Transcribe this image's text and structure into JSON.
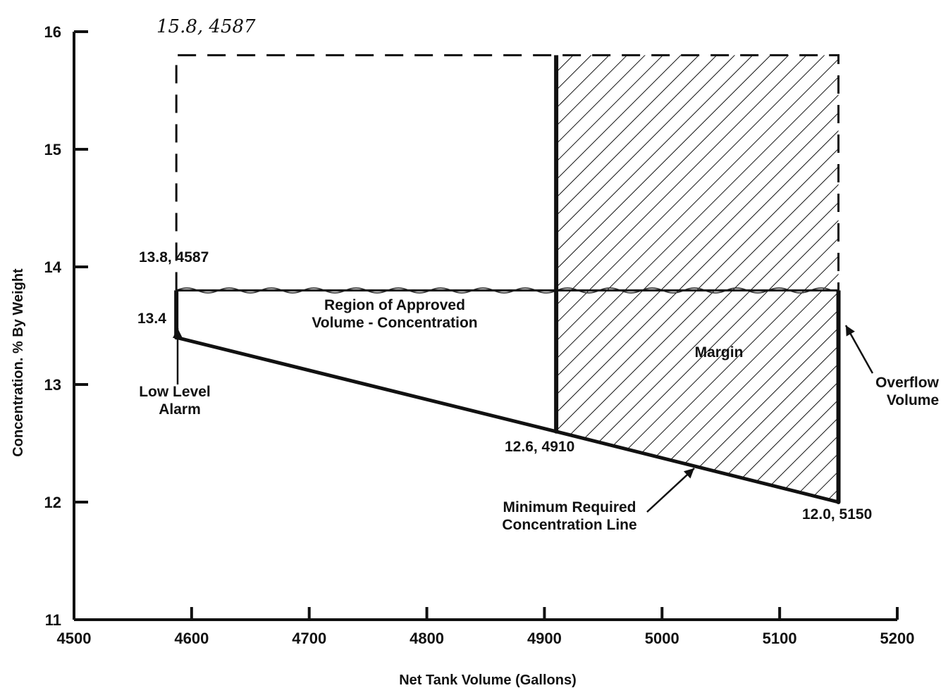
{
  "chart_data": {
    "type": "line",
    "xlabel": "Net Tank Volume (Gallons)",
    "ylabel": "Concentration. % By Weight",
    "xlim": [
      4500,
      5200
    ],
    "ylim": [
      11,
      16
    ],
    "x_ticks": [
      "4500",
      "4600",
      "4700",
      "4800",
      "4900",
      "5000",
      "5100",
      "5200"
    ],
    "y_ticks": [
      "11",
      "12",
      "13",
      "14",
      "15",
      "16"
    ],
    "grid": false,
    "series": [
      {
        "name": "Minimum Required Concentration Line",
        "x": [
          4587,
          4910,
          5150
        ],
        "y": [
          13.4,
          12.6,
          12.0
        ]
      }
    ],
    "max_concentration": 13.8,
    "upper_limit": 15.8,
    "low_level_alarm_volume": 4587,
    "overflow_volume": 5150,
    "margin_start_volume": 4910,
    "annotations": {
      "upper_point": "15.8, 4587",
      "left_top_point": "13.8, 4587",
      "left_bottom_value": "13.4",
      "mid_point": "12.6, 4910",
      "right_point": "12.0, 5150",
      "region_line1": "Region of Approved",
      "region_line2": "Volume - Concentration",
      "low_level_line1": "Low Level",
      "low_level_line2": "Alarm",
      "margin": "Margin",
      "overflow_line1": "Overflow",
      "overflow_line2": "Volume",
      "min_req_line1": "Minimum Required",
      "min_req_line2": "Concentration Line"
    }
  }
}
